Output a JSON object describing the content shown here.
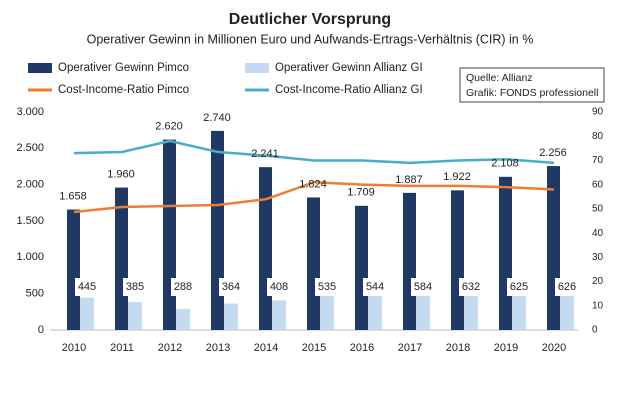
{
  "chart_data": {
    "type": "bar_line",
    "title": "Deutlicher Vorsprung",
    "subtitle": "Operativer Gewinn in Millionen Euro und Aufwands-Ertrags-Verhältnis (CIR) in %",
    "annotations": [
      "Quelle: Allianz",
      "Grafik: FONDS professionell"
    ],
    "categories": [
      "2010",
      "2011",
      "2012",
      "2013",
      "2014",
      "2015",
      "2016",
      "2017",
      "2018",
      "2019",
      "2020"
    ],
    "series": [
      {
        "name": "Operativer Gewinn Pimco",
        "type": "bar",
        "color": "#1f3864",
        "values": [
          1658,
          1960,
          2620,
          2740,
          2241,
          1824,
          1709,
          1887,
          1922,
          2108,
          2256
        ],
        "value_labels": [
          "1.658",
          "1.960",
          "2.620",
          "2.740",
          "2.241",
          "1.824",
          "1.709",
          "1.887",
          "1.922",
          "2.108",
          "2.256"
        ]
      },
      {
        "name": "Operativer Gewinn Allianz GI",
        "type": "bar",
        "color": "#c5d9f1",
        "values": [
          445,
          385,
          288,
          364,
          408,
          535,
          544,
          584,
          632,
          625,
          626
        ]
      },
      {
        "name": "Cost-Income-Ratio Pimco",
        "type": "line",
        "axis": "y2",
        "color": "#ed7d31",
        "values": [
          48.7,
          50.8,
          51.2,
          51.6,
          54,
          61,
          60,
          59.5,
          59.5,
          59,
          58
        ]
      },
      {
        "name": "Cost-Income-Ratio Allianz GI",
        "type": "line",
        "axis": "y2",
        "color": "#4bacc6",
        "values": [
          73,
          73.5,
          78,
          73.5,
          72,
          70,
          70,
          69,
          70,
          70.5,
          69
        ]
      }
    ],
    "ylim": [
      0,
      3000
    ],
    "yticks": [
      0,
      500,
      {
        "value": 1000,
        "label": "1.000"
      },
      {
        "value": 1500,
        "label": "1.500"
      },
      {
        "value": 2000,
        "label": "2.000"
      },
      {
        "value": 2500,
        "label": "2.500"
      },
      {
        "value": 3000,
        "label": "3.000"
      }
    ],
    "y2lim": [
      0,
      90
    ],
    "y2ticks": [
      0,
      10,
      20,
      30,
      40,
      50,
      60,
      70,
      80,
      90
    ],
    "grid": false
  }
}
